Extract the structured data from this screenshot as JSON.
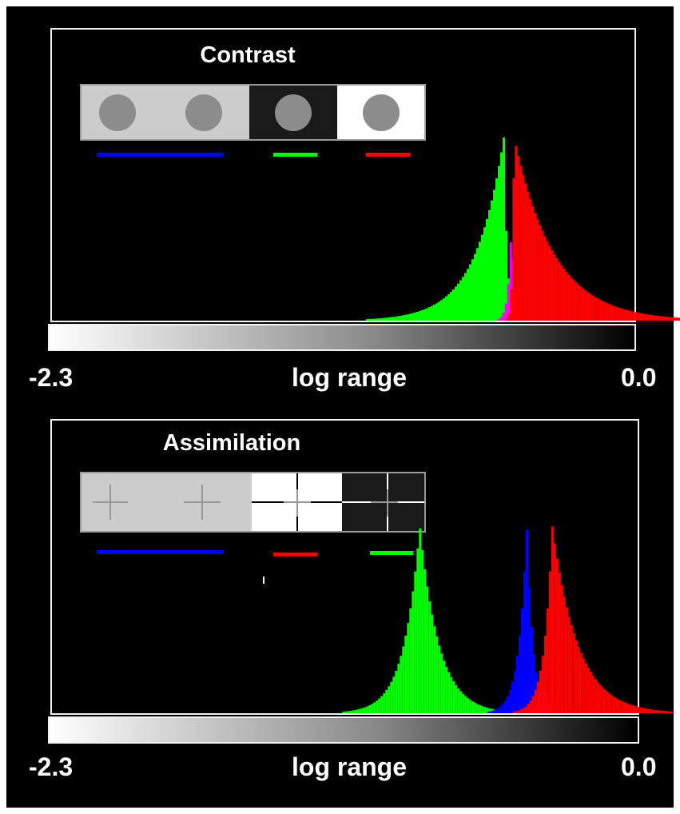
{
  "axis": {
    "left_label": "-2.3",
    "center_label": "log range",
    "right_label": "0.0"
  },
  "colors": {
    "blue": "#0000ff",
    "green": "#00ff00",
    "red": "#ff0000",
    "magenta": "#ff00ff",
    "frame": "#f2f2f2",
    "background": "#000000"
  },
  "chart_data": [
    {
      "type": "histogram",
      "title": "Contrast",
      "xlabel": "log range",
      "xlim": [
        -2.3,
        0.0
      ],
      "stimulus": {
        "segments": [
          {
            "background": "#cccccc",
            "disks": 2,
            "legend_color": "blue"
          },
          {
            "background": "#1a1a1a",
            "disks": 1,
            "legend_color": "green"
          },
          {
            "background": "#ffffff",
            "disks": 1,
            "legend_color": "red"
          }
        ]
      },
      "series": [
        {
          "color": "green",
          "peak_x": -0.52,
          "peak_height": 1.0,
          "spread_left": 0.18,
          "spread_right": 0.02
        },
        {
          "color": "magenta",
          "peak_x": -0.49,
          "peak_height": 0.55,
          "spread_left": 0.02,
          "spread_right": 0.02
        },
        {
          "color": "red",
          "peak_x": -0.48,
          "peak_height": 1.0,
          "spread_left": 0.01,
          "spread_right": 0.25
        }
      ]
    },
    {
      "type": "histogram",
      "title": "Assimilation",
      "xlabel": "log range",
      "xlim": [
        -2.3,
        0.0
      ],
      "stimulus": {
        "segments": [
          {
            "background": "#cccccc",
            "crosses": 2,
            "legend_color": "blue"
          },
          {
            "background": "#ffffff",
            "crosses": 1,
            "legend_color": "red"
          },
          {
            "background": "#1a1a1a",
            "crosses": 1,
            "legend_color": "green"
          }
        ]
      },
      "series": [
        {
          "color": "green",
          "peak_x": -0.86,
          "peak_height": 1.0,
          "spread_left": 0.1,
          "spread_right": 0.12
        },
        {
          "color": "blue",
          "peak_x": -0.44,
          "peak_height": 1.0,
          "spread_left": 0.05,
          "spread_right": 0.04
        },
        {
          "color": "magenta",
          "peak_x": -0.38,
          "peak_height": 0.15,
          "spread_left": 0.03,
          "spread_right": 0.03
        },
        {
          "color": "red",
          "peak_x": -0.34,
          "peak_height": 1.0,
          "spread_left": 0.05,
          "spread_right": 0.16
        }
      ]
    }
  ]
}
